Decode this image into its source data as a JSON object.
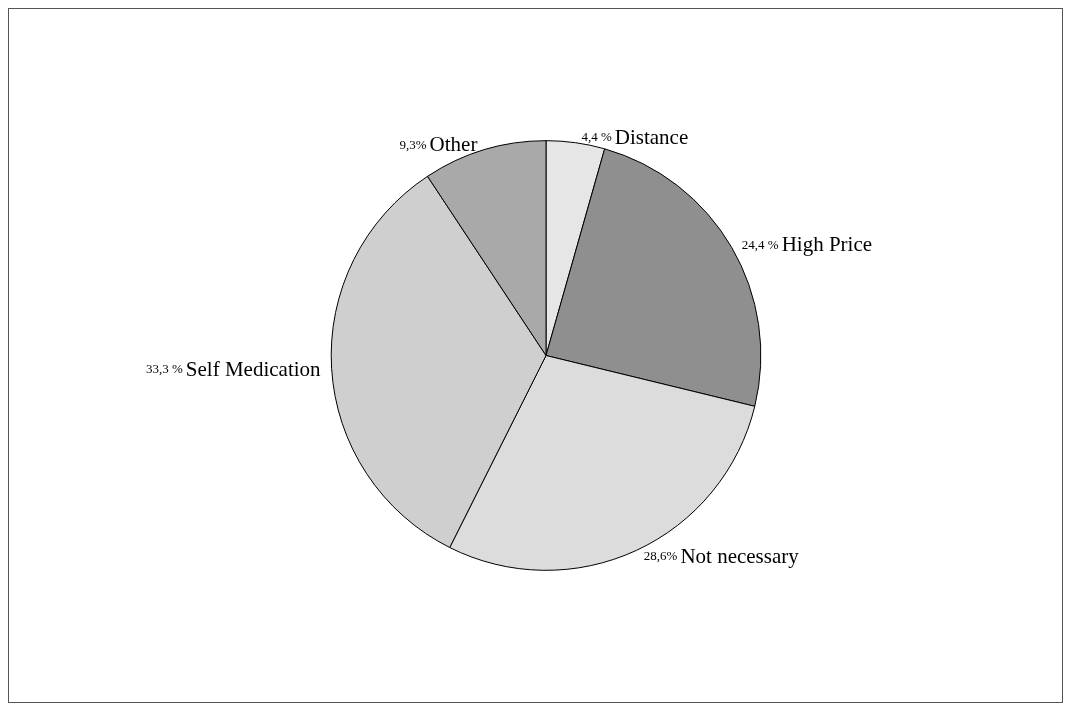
{
  "chart_data": {
    "type": "pie",
    "categories": [
      "Distance",
      "High Price",
      "Not necessary",
      "Self Medication",
      "Other"
    ],
    "values": [
      4.4,
      24.4,
      28.6,
      33.3,
      9.3
    ],
    "value_labels": [
      "4,4 %",
      "24,4 %",
      "28,6%",
      "33,3 %",
      "9,3%"
    ],
    "colors": [
      "#e6e6e6",
      "#8f8f8f",
      "#dcdcdc",
      "#cfcfcf",
      "#a9a9a9"
    ],
    "legend": false
  }
}
